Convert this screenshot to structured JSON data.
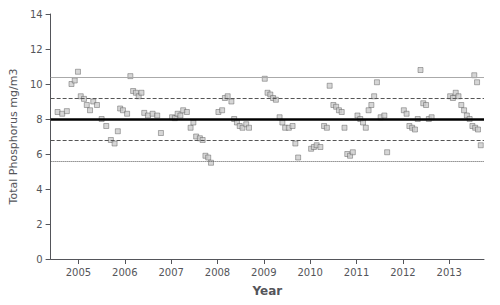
{
  "chart_data": {
    "type": "scatter",
    "xlabel": "Year",
    "ylabel": "Total Phosphorus mg/m3",
    "x": [
      2004.55,
      2004.65,
      2004.75,
      2004.85,
      2004.92,
      2004.99,
      2005.05,
      2005.12,
      2005.18,
      2005.25,
      2005.32,
      2005.4,
      2005.5,
      2005.6,
      2005.7,
      2005.78,
      2005.85,
      2005.9,
      2005.96,
      2006.05,
      2006.12,
      2006.18,
      2006.24,
      2006.3,
      2006.36,
      2006.42,
      2006.5,
      2006.6,
      2006.7,
      2006.78,
      2007.02,
      2007.08,
      2007.14,
      2007.2,
      2007.26,
      2007.34,
      2007.42,
      2007.48,
      2007.54,
      2007.62,
      2007.68,
      2007.74,
      2007.8,
      2007.86,
      2008.02,
      2008.1,
      2008.16,
      2008.22,
      2008.3,
      2008.36,
      2008.42,
      2008.48,
      2008.54,
      2008.62,
      2008.68,
      2009.02,
      2009.08,
      2009.14,
      2009.2,
      2009.26,
      2009.34,
      2009.4,
      2009.46,
      2009.54,
      2009.62,
      2009.68,
      2009.74,
      2010.02,
      2010.08,
      2010.14,
      2010.22,
      2010.3,
      2010.36,
      2010.42,
      2010.5,
      2010.56,
      2010.62,
      2010.68,
      2010.74,
      2010.8,
      2010.86,
      2010.92,
      2011.02,
      2011.08,
      2011.14,
      2011.2,
      2011.26,
      2011.32,
      2011.38,
      2011.44,
      2011.52,
      2011.6,
      2011.66,
      2012.02,
      2012.08,
      2012.14,
      2012.2,
      2012.26,
      2012.32,
      2012.38,
      2012.44,
      2012.5,
      2012.56,
      2012.62,
      2013.02,
      2013.08,
      2013.14,
      2013.2,
      2013.26,
      2013.32,
      2013.38,
      2013.44,
      2013.5,
      2013.56,
      2013.62,
      2013.68,
      2013.54,
      2013.6
    ],
    "values": [
      8.4,
      8.3,
      8.45,
      10.0,
      10.2,
      10.7,
      9.3,
      9.15,
      8.8,
      8.5,
      9.0,
      8.8,
      8.0,
      7.6,
      6.8,
      6.6,
      7.3,
      8.6,
      8.5,
      8.3,
      10.45,
      9.6,
      9.5,
      9.3,
      9.5,
      8.35,
      8.2,
      8.3,
      8.2,
      7.2,
      8.1,
      8.05,
      8.3,
      8.2,
      8.5,
      8.4,
      7.5,
      7.8,
      7.0,
      6.9,
      6.8,
      5.9,
      5.8,
      5.5,
      8.4,
      8.5,
      9.2,
      9.3,
      9.0,
      8.0,
      7.8,
      7.6,
      7.5,
      7.7,
      7.5,
      10.3,
      9.5,
      9.4,
      9.2,
      9.1,
      8.1,
      7.8,
      7.5,
      7.5,
      7.6,
      6.6,
      5.8,
      6.3,
      6.4,
      6.5,
      6.4,
      7.6,
      7.5,
      9.9,
      8.8,
      8.7,
      8.5,
      8.4,
      7.5,
      6.0,
      5.9,
      6.1,
      8.2,
      8.0,
      7.8,
      7.5,
      8.5,
      8.8,
      9.3,
      10.1,
      8.1,
      8.2,
      6.1,
      8.5,
      8.3,
      7.6,
      7.5,
      7.4,
      8.0,
      10.8,
      8.9,
      8.8,
      8.0,
      8.1,
      9.3,
      9.2,
      9.5,
      9.3,
      8.8,
      8.5,
      8.2,
      8.0,
      7.6,
      7.5,
      7.4,
      6.5,
      10.5,
      10.1
    ],
    "color": "#cccccc",
    "marker": "square",
    "hlines": [
      {
        "value": 10.4,
        "color": "#aaaaaa",
        "line_style": "solid"
      },
      {
        "value": 9.2,
        "color": "#555555",
        "line_style": "dashed"
      },
      {
        "value": 6.78,
        "color": "#555555",
        "line_style": "dashed"
      },
      {
        "value": 5.58,
        "color": "#555555",
        "line_style": "dotted"
      },
      {
        "value": 8.0,
        "color": "#000000",
        "line_style": "solid"
      }
    ],
    "xlim": [
      2004.4,
      2013.75
    ],
    "xticks": [
      2005,
      2006,
      2007,
      2008,
      2009,
      2010,
      2011,
      2012,
      2013
    ],
    "ylim": [
      0,
      14
    ],
    "yticks": [
      0,
      2,
      4,
      6,
      8,
      10,
      12,
      14
    ],
    "grid": false
  }
}
